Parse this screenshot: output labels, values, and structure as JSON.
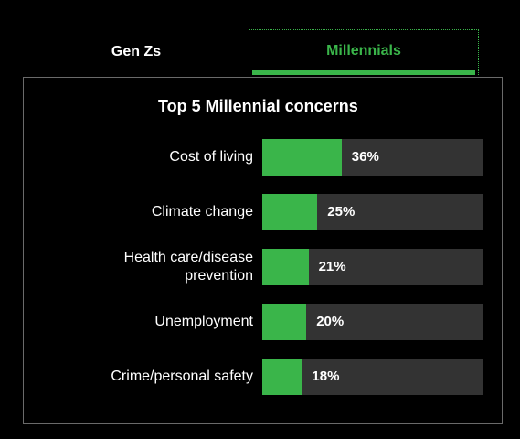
{
  "tabs": [
    {
      "label": "Gen Zs",
      "active": false
    },
    {
      "label": "Millennials",
      "active": true
    }
  ],
  "colors": {
    "accent": "#3ab54a",
    "track": "#333333",
    "background": "#000000"
  },
  "chart_data": {
    "type": "bar",
    "orientation": "horizontal",
    "title": "Top 5 Millennial concerns",
    "categories": [
      "Cost of living",
      "Climate change",
      "Health care/disease prevention",
      "Unemployment",
      "Crime/personal safety"
    ],
    "values": [
      36,
      25,
      21,
      20,
      18
    ],
    "value_labels": [
      "36%",
      "25%",
      "21%",
      "20%",
      "18%"
    ],
    "xlim": [
      0,
      100
    ],
    "grid": false,
    "legend": "none"
  }
}
